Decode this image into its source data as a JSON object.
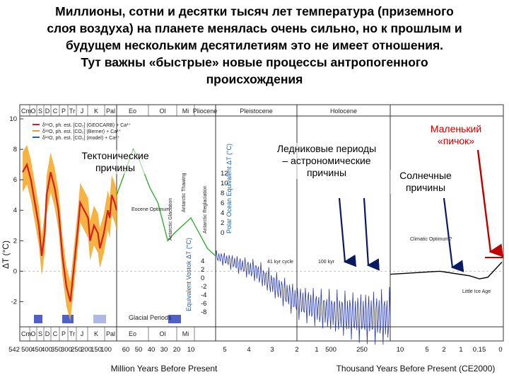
{
  "title_lines": [
    "Миллионы, сотни и десятки тысяч лет температура (приземного",
    "слоя воздуха) на планете менялась очень сильно, но к прошлым и",
    "будущем нескольким десятилетиям это не имеет отношения.",
    "Тут важны «быстрые» новые процессы антропогенного",
    "происхождения"
  ],
  "annotations": {
    "tectonic": "Тектонические причины",
    "glacial": "Ледниковые периоды – астрономические причины",
    "solar": "Солнечные причины",
    "spike": "Маленький «пичок»"
  },
  "colors": {
    "red_curve": "#d42020",
    "orange_band": "#f5a623",
    "green_curve": "#22aa22",
    "blue_curve": "#2a3aa0",
    "black_curve": "#000000",
    "arrow_red": "#c00000",
    "glacial_bar": "#5060c8",
    "glacial_bar_light": "#b0b8e8"
  },
  "chart_data": {
    "type": "line",
    "ylabel": "ΔT (°C)",
    "ylim": [
      -3,
      10
    ],
    "yticks": [
      "10",
      "8",
      "6",
      "4",
      "2",
      "0",
      "-2"
    ],
    "grid": false,
    "header_periods": [
      {
        "label": "Cm"
      },
      {
        "label": "O"
      },
      {
        "label": "S"
      },
      {
        "label": "D"
      },
      {
        "label": "C"
      },
      {
        "label": "P"
      },
      {
        "label": "Tr"
      },
      {
        "label": "J"
      },
      {
        "label": "K"
      },
      {
        "label": "Pal"
      },
      {
        "label": "Eo"
      },
      {
        "label": "Ol"
      },
      {
        "label": "Mi"
      },
      {
        "label": "Pliocene"
      },
      {
        "label": "Pleistocene"
      },
      {
        "label": "Holocene"
      }
    ],
    "footer_periods": [
      "Cm",
      "O",
      "S",
      "D",
      "C",
      "P",
      "Tr",
      "J",
      "K",
      "Pal",
      "Eo",
      "Ol",
      "Mi"
    ],
    "glacial_periods_label": "Glacial Periods",
    "panels": [
      {
        "xlabel": "Million Years Before Present",
        "xticks": [
          "542",
          "500",
          "450",
          "400",
          "350",
          "300",
          "250",
          "200",
          "150",
          "100",
          "60",
          "50",
          "40",
          "30",
          "20",
          "10",
          "5",
          "4",
          "3",
          "2",
          "1"
        ]
      },
      {
        "xlabel": "Thousand Years Before Present (CE2000)",
        "xticks": [
          "500",
          "250",
          "10",
          "5",
          "2",
          "1",
          "0.15",
          "0"
        ]
      }
    ],
    "legend_entries": [
      "δ¹⁸O, ph. est. [CO₂] (GEOCARB) + Ca²⁺",
      "δ¹⁸O, ph. est. [CO₂] (Berner) + Ca²⁺",
      "δ¹⁸O, ph. est. [CO₂] (model) + Ca²⁺"
    ],
    "inset_labels": [
      "Antarctic Glaciation",
      "Antarctic Thawing",
      "Antarctic Reglaciation",
      "Eocene Optimum"
    ],
    "secondary_axis_green": {
      "label": "Polar Ocean Equivalent ΔT (°C)",
      "ticks": [
        "12",
        "10",
        "8",
        "6",
        "4",
        "2",
        "0"
      ]
    },
    "secondary_axis_blue": {
      "label": "Equivalent Vostok ΔT (°C)",
      "ticks": [
        "4",
        "2",
        "0",
        "-2",
        "-4",
        "-6",
        "-8"
      ]
    },
    "cycle_labels": [
      "41 kyr cycle",
      "100 kyr"
    ],
    "holocene_labels": [
      "Climatic Optimum?",
      "Little Ice Age"
    ],
    "series": [
      {
        "x": [
          542,
          520,
          500,
          480,
          460,
          445,
          430,
          420,
          400,
          380,
          360,
          340,
          320,
          300,
          280,
          260,
          250,
          230,
          210,
          200,
          180,
          160,
          150,
          130,
          110,
          100,
          90,
          75,
          65
        ],
        "values": [
          6.5,
          7.0,
          6.0,
          4.5,
          3.0,
          1.0,
          2.5,
          5.0,
          6.5,
          5.5,
          4.0,
          1.0,
          -1.0,
          -2.0,
          0.5,
          3.0,
          4.5,
          4.0,
          3.5,
          2.0,
          3.0,
          2.5,
          1.5,
          2.5,
          4.0,
          3.5,
          5.0,
          4.5,
          4.0
        ]
      },
      {
        "x": [
          65,
          55,
          52,
          45,
          40,
          34,
          30,
          25,
          20,
          15,
          10,
          5
        ],
        "values": [
          5.0,
          8.0,
          7.5,
          5.5,
          4.5,
          2.0,
          2.5,
          3.0,
          3.5,
          2.5,
          1.5,
          1.0
        ]
      },
      {
        "x": [
          5,
          4,
          3,
          2.5,
          2,
          1.5,
          1,
          0.8,
          0.5,
          0.25
        ],
        "values": [
          1.0,
          0.5,
          0.0,
          -0.5,
          -1.0,
          -1.5,
          -2.0,
          -2.5,
          -3.0,
          -3.0
        ]
      },
      {
        "x": [
          10,
          5,
          2,
          1,
          0.15,
          0
        ],
        "values": [
          -0.2,
          0.0,
          -0.3,
          -0.5,
          -0.4,
          0.6
        ]
      }
    ]
  }
}
